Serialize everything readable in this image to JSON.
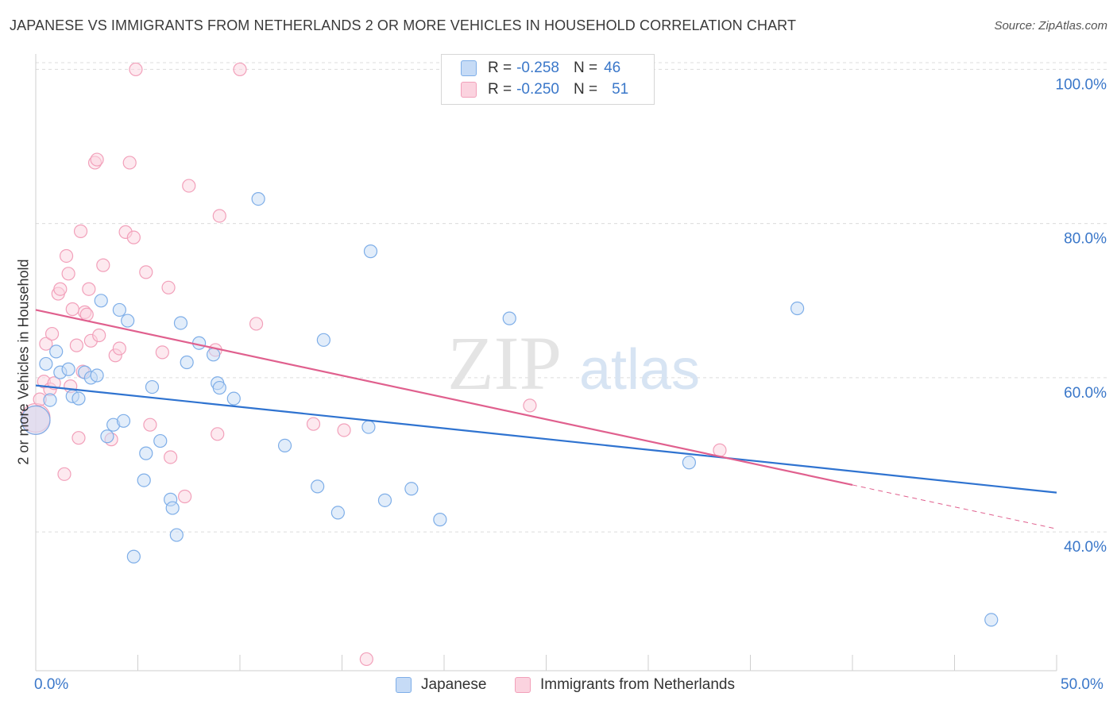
{
  "title": "JAPANESE VS IMMIGRANTS FROM NETHERLANDS 2 OR MORE VEHICLES IN HOUSEHOLD CORRELATION CHART",
  "source": "Source: ZipAtlas.com",
  "watermark": {
    "zip": "ZIP",
    "atlas": "atlas"
  },
  "legend": {
    "rows": [
      {
        "r_label": "R = ",
        "r_value": "-0.258",
        "n_label": "N = ",
        "n_value": "46"
      },
      {
        "r_label": "R = ",
        "r_value": "-0.250",
        "n_label": "N = ",
        "n_value": "51"
      }
    ]
  },
  "chart_data": {
    "type": "scatter",
    "title": "JAPANESE VS IMMIGRANTS FROM NETHERLANDS 2 OR MORE VEHICLES IN HOUSEHOLD CORRELATION CHART",
    "xlabel": "",
    "ylabel": "2 or more Vehicles in Household",
    "xlim": [
      0,
      50
    ],
    "ylim": [
      22,
      102
    ],
    "x_tick_labels": [
      "0.0%",
      "50.0%"
    ],
    "y_ticks": [
      40,
      60,
      80,
      100
    ],
    "y_tick_labels": [
      "40.0%",
      "60.0%",
      "80.0%",
      "100.0%"
    ],
    "grid": true,
    "legend_position": "bottom",
    "colors": {
      "japanese": "#a9c8f0",
      "japanese_line": "#2f73d0",
      "netherlands": "#f6b8cb",
      "netherlands_line": "#e0608e",
      "tick_text": "#3a77c9"
    },
    "series": [
      {
        "name": "Japanese",
        "r": -0.258,
        "n": 46,
        "trend": {
          "x": [
            0,
            50
          ],
          "y": [
            59.0,
            45.1
          ]
        },
        "points": [
          [
            0.0,
            54.5
          ],
          [
            0.5,
            61.8
          ],
          [
            0.7,
            57.1
          ],
          [
            1.0,
            63.4
          ],
          [
            1.2,
            60.7
          ],
          [
            1.6,
            61.1
          ],
          [
            1.8,
            57.6
          ],
          [
            2.1,
            57.3
          ],
          [
            2.4,
            60.7
          ],
          [
            2.7,
            60.0
          ],
          [
            3.0,
            60.3
          ],
          [
            3.2,
            70.0
          ],
          [
            3.5,
            52.4
          ],
          [
            3.8,
            53.9
          ],
          [
            4.1,
            68.8
          ],
          [
            4.3,
            54.4
          ],
          [
            4.5,
            67.4
          ],
          [
            4.8,
            36.8
          ],
          [
            5.3,
            46.7
          ],
          [
            5.4,
            50.2
          ],
          [
            5.7,
            58.8
          ],
          [
            6.1,
            51.8
          ],
          [
            6.6,
            44.2
          ],
          [
            6.7,
            43.1
          ],
          [
            6.9,
            39.6
          ],
          [
            7.1,
            67.1
          ],
          [
            7.4,
            62.0
          ],
          [
            8.0,
            64.5
          ],
          [
            8.7,
            63.0
          ],
          [
            8.9,
            59.3
          ],
          [
            9.0,
            58.7
          ],
          [
            9.7,
            57.3
          ],
          [
            10.9,
            83.2
          ],
          [
            12.2,
            51.2
          ],
          [
            13.8,
            45.9
          ],
          [
            14.1,
            64.9
          ],
          [
            14.8,
            42.5
          ],
          [
            16.3,
            53.6
          ],
          [
            16.4,
            76.4
          ],
          [
            17.1,
            44.1
          ],
          [
            18.4,
            45.6
          ],
          [
            19.8,
            41.6
          ],
          [
            23.2,
            67.7
          ],
          [
            32.0,
            49.0
          ],
          [
            37.3,
            69.0
          ],
          [
            46.8,
            28.6
          ]
        ]
      },
      {
        "name": "Immigrants from Netherlands",
        "r": -0.25,
        "n": 51,
        "trend": {
          "x": [
            0,
            40
          ],
          "y": [
            68.8,
            46.1
          ]
        },
        "trend_extension": {
          "x": [
            40,
            50
          ],
          "y": [
            46.1,
            40.4
          ]
        },
        "points": [
          [
            0.0,
            54.8
          ],
          [
            0.2,
            57.2
          ],
          [
            0.4,
            59.5
          ],
          [
            0.5,
            64.4
          ],
          [
            0.7,
            58.5
          ],
          [
            0.8,
            65.7
          ],
          [
            0.9,
            59.3
          ],
          [
            1.1,
            70.9
          ],
          [
            1.2,
            71.5
          ],
          [
            1.4,
            47.5
          ],
          [
            1.5,
            75.8
          ],
          [
            1.6,
            73.5
          ],
          [
            1.7,
            58.9
          ],
          [
            1.8,
            68.9
          ],
          [
            2.0,
            64.2
          ],
          [
            2.1,
            52.2
          ],
          [
            2.2,
            79.0
          ],
          [
            2.3,
            60.8
          ],
          [
            2.4,
            68.5
          ],
          [
            2.5,
            68.2
          ],
          [
            2.6,
            71.5
          ],
          [
            2.7,
            64.8
          ],
          [
            2.9,
            87.9
          ],
          [
            3.0,
            88.3
          ],
          [
            3.1,
            65.5
          ],
          [
            3.3,
            74.6
          ],
          [
            3.7,
            52.0
          ],
          [
            3.9,
            62.9
          ],
          [
            4.1,
            63.8
          ],
          [
            4.4,
            78.9
          ],
          [
            4.6,
            87.9
          ],
          [
            4.8,
            78.2
          ],
          [
            4.9,
            100.0
          ],
          [
            5.4,
            73.7
          ],
          [
            5.6,
            53.9
          ],
          [
            6.2,
            63.3
          ],
          [
            6.5,
            71.7
          ],
          [
            6.6,
            49.7
          ],
          [
            7.3,
            44.6
          ],
          [
            7.5,
            84.9
          ],
          [
            8.8,
            63.6
          ],
          [
            8.9,
            52.7
          ],
          [
            9.0,
            81.0
          ],
          [
            10.0,
            100.0
          ],
          [
            10.8,
            67.0
          ],
          [
            13.6,
            54.0
          ],
          [
            15.1,
            53.2
          ],
          [
            16.2,
            23.5
          ],
          [
            24.2,
            56.4
          ],
          [
            33.5,
            50.6
          ],
          [
            0.0,
            54.5
          ]
        ]
      }
    ]
  }
}
